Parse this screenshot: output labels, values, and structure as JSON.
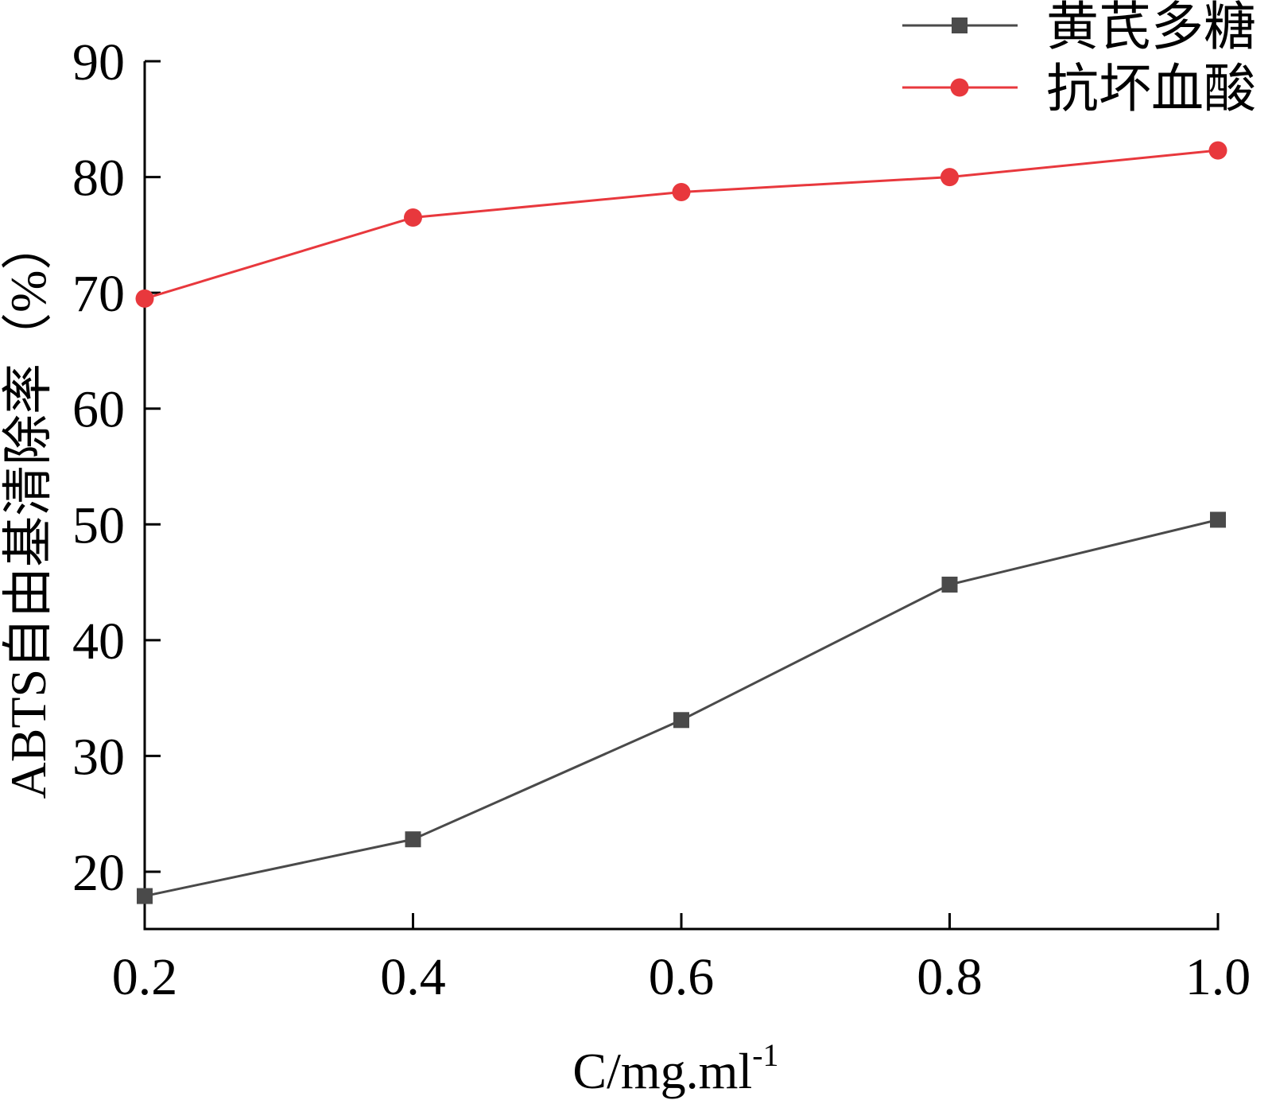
{
  "chart_data": {
    "type": "line",
    "title": "",
    "xlabel": "C/mg.ml",
    "xlabel_superscript": "-1",
    "ylabel": "ABTS自由基清除率（%）",
    "x": [
      0.2,
      0.4,
      0.6,
      0.8,
      1.0
    ],
    "x_tick_labels": [
      "0.2",
      "0.4",
      "0.6",
      "0.8",
      "1.0"
    ],
    "y_ticks": [
      20,
      30,
      40,
      50,
      60,
      70,
      80,
      90
    ],
    "y_tick_labels": [
      "20",
      "30",
      "40",
      "50",
      "60",
      "70",
      "80",
      "90"
    ],
    "xlim": [
      0.2,
      1.0
    ],
    "ylim": [
      15,
      90
    ],
    "grid": false,
    "legend_position": "top-right",
    "series": [
      {
        "name": "黄芪多糖",
        "marker": "square",
        "color": "#4a4a4a",
        "values": [
          17.9,
          22.8,
          33.1,
          44.8,
          50.4
        ]
      },
      {
        "name": "抗坏血酸",
        "marker": "circle",
        "color": "#e8383d",
        "values": [
          69.5,
          76.5,
          78.7,
          80.0,
          82.3
        ]
      }
    ]
  }
}
